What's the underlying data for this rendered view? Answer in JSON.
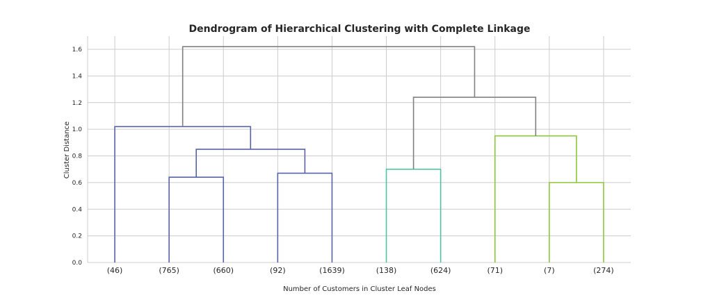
{
  "chart_data": {
    "type": "dendrogram",
    "title": "Dendrogram of Hierarchical Clustering with Complete Linkage",
    "xlabel": "Number of Customers in Cluster Leaf Nodes",
    "ylabel": "Cluster Distance",
    "ylim": [
      0,
      1.7
    ],
    "yticks": [
      "0.0",
      "0.2",
      "0.4",
      "0.6",
      "0.8",
      "1.0",
      "1.2",
      "1.4",
      "1.6"
    ],
    "grid": true,
    "leaves": [
      "(46)",
      "(765)",
      "(660)",
      "(92)",
      "(1639)",
      "(138)",
      "(624)",
      "(71)",
      "(7)",
      "(274)"
    ],
    "colors": {
      "cluster_blue": "#5862a8",
      "cluster_teal": "#4fc4a3",
      "cluster_green": "#8cc83c",
      "above_threshold": "#808080"
    },
    "merges": [
      {
        "left": "leaf:1",
        "right": "leaf:2",
        "height": 0.64,
        "color": "cluster_blue"
      },
      {
        "left": "leaf:3",
        "right": "leaf:4",
        "height": 0.67,
        "color": "cluster_blue"
      },
      {
        "left": "merge:0",
        "right": "merge:1",
        "height": 0.85,
        "color": "cluster_blue"
      },
      {
        "left": "leaf:0",
        "right": "merge:2",
        "height": 1.02,
        "color": "cluster_blue"
      },
      {
        "left": "leaf:5",
        "right": "leaf:6",
        "height": 0.7,
        "color": "cluster_teal"
      },
      {
        "left": "leaf:8",
        "right": "leaf:9",
        "height": 0.6,
        "color": "cluster_green"
      },
      {
        "left": "leaf:7",
        "right": "merge:5",
        "height": 0.95,
        "color": "cluster_green"
      },
      {
        "left": "merge:4",
        "right": "merge:6",
        "height": 1.24,
        "color": "above_threshold"
      },
      {
        "left": "merge:3",
        "right": "merge:7",
        "height": 1.62,
        "color": "above_threshold"
      }
    ]
  }
}
